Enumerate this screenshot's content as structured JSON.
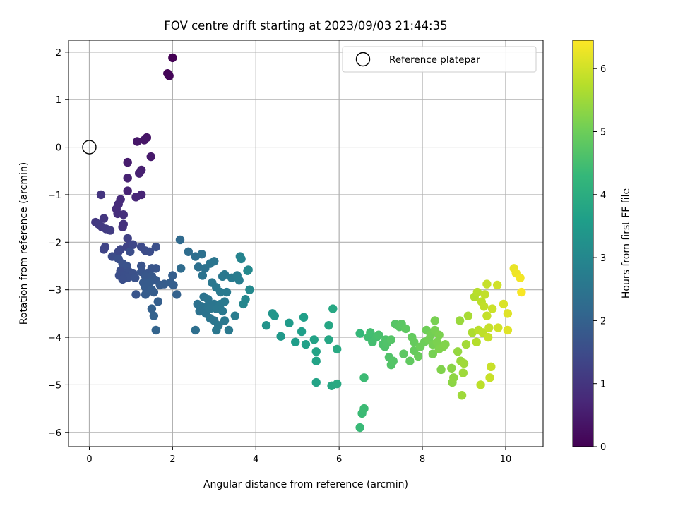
{
  "chart_data": {
    "type": "scatter",
    "title": "FOV centre drift starting at 2023/09/03 21:44:35",
    "xlabel": "Angular distance from reference (arcmin)",
    "ylabel": "Rotation from reference (arcmin)",
    "xlim": [
      -0.5,
      10.9
    ],
    "ylim": [
      -6.3,
      2.25
    ],
    "xticks": [
      0,
      2,
      4,
      6,
      8,
      10
    ],
    "yticks": [
      -6,
      -5,
      -4,
      -3,
      -2,
      -1,
      0,
      1,
      2
    ],
    "grid": true,
    "legend": {
      "placement": "top-right",
      "entries": [
        "Reference platepar"
      ]
    },
    "reference_point": {
      "label": "Reference platepar",
      "x": 0,
      "y": 0,
      "marker": "open-circle"
    },
    "colorbar": {
      "label": "Hours from first FF file",
      "colormap": "viridis",
      "range": [
        0,
        6.45
      ],
      "ticks": [
        0,
        1,
        2,
        3,
        4,
        5,
        6
      ]
    },
    "colormap_stops": [
      "#440154",
      "#482878",
      "#3e4989",
      "#31688e",
      "#26828e",
      "#1f9e89",
      "#35b779",
      "#6ece58",
      "#b5de2b",
      "#fde725"
    ],
    "marker_color": "#000000",
    "points": [
      {
        "x": 2.0,
        "y": 1.88,
        "c": 0.0
      },
      {
        "x": 1.88,
        "y": 1.55,
        "c": 0.05
      },
      {
        "x": 1.92,
        "y": 1.5,
        "c": 0.08
      },
      {
        "x": 1.38,
        "y": 0.2,
        "c": 0.35
      },
      {
        "x": 1.32,
        "y": 0.15,
        "c": 0.38
      },
      {
        "x": 1.15,
        "y": 0.12,
        "c": 0.4
      },
      {
        "x": 1.48,
        "y": -0.2,
        "c": 0.45
      },
      {
        "x": 0.92,
        "y": -0.32,
        "c": 0.5
      },
      {
        "x": 1.25,
        "y": -0.48,
        "c": 0.55
      },
      {
        "x": 1.2,
        "y": -0.55,
        "c": 0.58
      },
      {
        "x": 0.92,
        "y": -0.65,
        "c": 0.6
      },
      {
        "x": 0.92,
        "y": -0.92,
        "c": 0.65
      },
      {
        "x": 1.25,
        "y": -1.0,
        "c": 0.67
      },
      {
        "x": 1.12,
        "y": -1.05,
        "c": 0.7
      },
      {
        "x": 0.28,
        "y": -1.0,
        "c": 1.0
      },
      {
        "x": 0.75,
        "y": -1.1,
        "c": 0.78
      },
      {
        "x": 0.7,
        "y": -1.2,
        "c": 0.8
      },
      {
        "x": 0.65,
        "y": -1.3,
        "c": 0.82
      },
      {
        "x": 0.68,
        "y": -1.4,
        "c": 0.85
      },
      {
        "x": 0.82,
        "y": -1.42,
        "c": 0.88
      },
      {
        "x": 0.35,
        "y": -1.5,
        "c": 1.02
      },
      {
        "x": 0.15,
        "y": -1.58,
        "c": 1.05
      },
      {
        "x": 0.22,
        "y": -1.62,
        "c": 1.08
      },
      {
        "x": 0.3,
        "y": -1.68,
        "c": 1.1
      },
      {
        "x": 0.4,
        "y": -1.72,
        "c": 1.12
      },
      {
        "x": 0.5,
        "y": -1.75,
        "c": 1.15
      },
      {
        "x": 0.82,
        "y": -1.62,
        "c": 0.9
      },
      {
        "x": 0.8,
        "y": -1.68,
        "c": 0.92
      },
      {
        "x": 0.92,
        "y": -1.92,
        "c": 1.25
      },
      {
        "x": 0.38,
        "y": -2.1,
        "c": 1.3
      },
      {
        "x": 0.35,
        "y": -2.15,
        "c": 1.32
      },
      {
        "x": 0.75,
        "y": -2.15,
        "c": 1.35
      },
      {
        "x": 0.9,
        "y": -2.1,
        "c": 1.3
      },
      {
        "x": 1.05,
        "y": -2.05,
        "c": 1.38
      },
      {
        "x": 0.7,
        "y": -2.2,
        "c": 1.4
      },
      {
        "x": 1.25,
        "y": -2.1,
        "c": 1.45
      },
      {
        "x": 1.35,
        "y": -2.18,
        "c": 1.5
      },
      {
        "x": 1.45,
        "y": -2.2,
        "c": 1.52
      },
      {
        "x": 0.98,
        "y": -2.2,
        "c": 1.55
      },
      {
        "x": 0.55,
        "y": -2.3,
        "c": 1.5
      },
      {
        "x": 0.7,
        "y": -2.35,
        "c": 1.58
      },
      {
        "x": 1.6,
        "y": -2.1,
        "c": 1.6
      },
      {
        "x": 0.8,
        "y": -2.45,
        "c": 1.62
      },
      {
        "x": 0.9,
        "y": -2.5,
        "c": 1.65
      },
      {
        "x": 1.25,
        "y": -2.5,
        "c": 1.68
      },
      {
        "x": 1.5,
        "y": -2.55,
        "c": 1.7
      },
      {
        "x": 1.6,
        "y": -2.55,
        "c": 1.72
      },
      {
        "x": 0.75,
        "y": -2.6,
        "c": 1.55
      },
      {
        "x": 0.95,
        "y": -2.62,
        "c": 1.6
      },
      {
        "x": 1.05,
        "y": -2.65,
        "c": 1.62
      },
      {
        "x": 1.25,
        "y": -2.62,
        "c": 1.7
      },
      {
        "x": 1.4,
        "y": -2.65,
        "c": 1.72
      },
      {
        "x": 0.72,
        "y": -2.7,
        "c": 1.55
      },
      {
        "x": 0.85,
        "y": -2.7,
        "c": 1.58
      },
      {
        "x": 0.92,
        "y": -2.75,
        "c": 1.6
      },
      {
        "x": 0.8,
        "y": -2.78,
        "c": 1.58
      },
      {
        "x": 1.1,
        "y": -2.75,
        "c": 1.65
      },
      {
        "x": 1.35,
        "y": -2.72,
        "c": 1.75
      },
      {
        "x": 1.5,
        "y": -2.72,
        "c": 1.78
      },
      {
        "x": 1.6,
        "y": -2.8,
        "c": 1.8
      },
      {
        "x": 1.3,
        "y": -2.85,
        "c": 1.82
      },
      {
        "x": 1.45,
        "y": -2.85,
        "c": 1.85
      },
      {
        "x": 1.7,
        "y": -2.9,
        "c": 1.88
      },
      {
        "x": 1.8,
        "y": -2.88,
        "c": 1.9
      },
      {
        "x": 1.95,
        "y": -2.85,
        "c": 1.92
      },
      {
        "x": 2.0,
        "y": -2.7,
        "c": 1.95
      },
      {
        "x": 2.02,
        "y": -2.9,
        "c": 1.95
      },
      {
        "x": 1.35,
        "y": -2.95,
        "c": 1.85
      },
      {
        "x": 1.4,
        "y": -3.05,
        "c": 1.85
      },
      {
        "x": 1.5,
        "y": -3.0,
        "c": 1.9
      },
      {
        "x": 1.55,
        "y": -3.05,
        "c": 1.9
      },
      {
        "x": 1.35,
        "y": -3.1,
        "c": 1.88
      },
      {
        "x": 1.12,
        "y": -3.1,
        "c": 1.7
      },
      {
        "x": 2.1,
        "y": -3.1,
        "c": 2.0
      },
      {
        "x": 1.65,
        "y": -3.25,
        "c": 1.95
      },
      {
        "x": 1.5,
        "y": -3.4,
        "c": 1.98
      },
      {
        "x": 1.55,
        "y": -3.55,
        "c": 2.0
      },
      {
        "x": 1.6,
        "y": -3.85,
        "c": 2.05
      },
      {
        "x": 2.18,
        "y": -1.95,
        "c": 2.2
      },
      {
        "x": 2.38,
        "y": -2.2,
        "c": 2.3
      },
      {
        "x": 2.2,
        "y": -2.55,
        "c": 2.25
      },
      {
        "x": 2.55,
        "y": -2.3,
        "c": 2.35
      },
      {
        "x": 2.7,
        "y": -2.25,
        "c": 2.4
      },
      {
        "x": 2.62,
        "y": -2.52,
        "c": 2.38
      },
      {
        "x": 2.78,
        "y": -2.55,
        "c": 2.42
      },
      {
        "x": 2.72,
        "y": -2.7,
        "c": 2.45
      },
      {
        "x": 2.9,
        "y": -2.45,
        "c": 2.5
      },
      {
        "x": 3.0,
        "y": -2.4,
        "c": 2.52
      },
      {
        "x": 3.25,
        "y": -2.68,
        "c": 2.6
      },
      {
        "x": 3.2,
        "y": -2.72,
        "c": 2.6
      },
      {
        "x": 3.42,
        "y": -2.75,
        "c": 2.65
      },
      {
        "x": 3.55,
        "y": -2.7,
        "c": 2.7
      },
      {
        "x": 3.6,
        "y": -2.8,
        "c": 2.72
      },
      {
        "x": 3.62,
        "y": -2.3,
        "c": 2.9
      },
      {
        "x": 3.65,
        "y": -2.35,
        "c": 2.92
      },
      {
        "x": 3.8,
        "y": -2.6,
        "c": 3.0
      },
      {
        "x": 3.82,
        "y": -2.58,
        "c": 3.05
      },
      {
        "x": 2.95,
        "y": -2.85,
        "c": 2.55
      },
      {
        "x": 3.05,
        "y": -2.95,
        "c": 2.58
      },
      {
        "x": 3.15,
        "y": -3.05,
        "c": 2.62
      },
      {
        "x": 3.3,
        "y": -3.05,
        "c": 2.65
      },
      {
        "x": 3.85,
        "y": -3.0,
        "c": 3.05
      },
      {
        "x": 3.75,
        "y": -3.2,
        "c": 3.0
      },
      {
        "x": 3.7,
        "y": -3.3,
        "c": 2.98
      },
      {
        "x": 2.75,
        "y": -3.15,
        "c": 2.45
      },
      {
        "x": 2.85,
        "y": -3.2,
        "c": 2.48
      },
      {
        "x": 2.6,
        "y": -3.3,
        "c": 2.4
      },
      {
        "x": 2.7,
        "y": -3.35,
        "c": 2.42
      },
      {
        "x": 2.85,
        "y": -3.35,
        "c": 2.48
      },
      {
        "x": 3.0,
        "y": -3.3,
        "c": 2.52
      },
      {
        "x": 3.15,
        "y": -3.3,
        "c": 2.58
      },
      {
        "x": 3.25,
        "y": -3.25,
        "c": 2.62
      },
      {
        "x": 2.65,
        "y": -3.45,
        "c": 2.42
      },
      {
        "x": 2.8,
        "y": -3.5,
        "c": 2.45
      },
      {
        "x": 2.9,
        "y": -3.4,
        "c": 2.5
      },
      {
        "x": 3.05,
        "y": -3.4,
        "c": 2.55
      },
      {
        "x": 3.2,
        "y": -3.45,
        "c": 2.6
      },
      {
        "x": 2.9,
        "y": -3.6,
        "c": 2.5
      },
      {
        "x": 3.0,
        "y": -3.65,
        "c": 2.52
      },
      {
        "x": 3.1,
        "y": -3.75,
        "c": 2.55
      },
      {
        "x": 3.05,
        "y": -3.85,
        "c": 2.55
      },
      {
        "x": 3.25,
        "y": -3.65,
        "c": 2.6
      },
      {
        "x": 3.35,
        "y": -3.85,
        "c": 2.62
      },
      {
        "x": 3.5,
        "y": -3.55,
        "c": 2.7
      },
      {
        "x": 2.55,
        "y": -3.85,
        "c": 2.35
      },
      {
        "x": 4.25,
        "y": -3.75,
        "c": 3.3
      },
      {
        "x": 4.4,
        "y": -3.5,
        "c": 3.35
      },
      {
        "x": 4.45,
        "y": -3.55,
        "c": 3.38
      },
      {
        "x": 4.6,
        "y": -3.98,
        "c": 3.45
      },
      {
        "x": 4.8,
        "y": -3.7,
        "c": 3.5
      },
      {
        "x": 4.95,
        "y": -4.1,
        "c": 3.55
      },
      {
        "x": 5.1,
        "y": -3.88,
        "c": 3.6
      },
      {
        "x": 5.15,
        "y": -3.58,
        "c": 3.62
      },
      {
        "x": 5.2,
        "y": -4.15,
        "c": 3.65
      },
      {
        "x": 5.4,
        "y": -4.05,
        "c": 3.7
      },
      {
        "x": 5.45,
        "y": -4.3,
        "c": 3.72
      },
      {
        "x": 5.45,
        "y": -4.5,
        "c": 3.72
      },
      {
        "x": 5.45,
        "y": -4.95,
        "c": 3.72
      },
      {
        "x": 5.75,
        "y": -4.05,
        "c": 3.8
      },
      {
        "x": 5.75,
        "y": -3.75,
        "c": 3.8
      },
      {
        "x": 5.85,
        "y": -3.4,
        "c": 3.85
      },
      {
        "x": 5.82,
        "y": -5.02,
        "c": 3.85
      },
      {
        "x": 5.95,
        "y": -4.98,
        "c": 3.9
      },
      {
        "x": 5.95,
        "y": -4.25,
        "c": 3.9
      },
      {
        "x": 6.5,
        "y": -3.92,
        "c": 4.3
      },
      {
        "x": 6.5,
        "y": -5.9,
        "c": 4.35
      },
      {
        "x": 6.55,
        "y": -5.6,
        "c": 4.38
      },
      {
        "x": 6.6,
        "y": -5.5,
        "c": 4.4
      },
      {
        "x": 6.6,
        "y": -4.85,
        "c": 4.4
      },
      {
        "x": 6.7,
        "y": -4.0,
        "c": 4.45
      },
      {
        "x": 6.75,
        "y": -3.9,
        "c": 4.48
      },
      {
        "x": 6.8,
        "y": -4.1,
        "c": 4.5
      },
      {
        "x": 6.9,
        "y": -4.0,
        "c": 4.52
      },
      {
        "x": 6.95,
        "y": -3.95,
        "c": 4.55
      },
      {
        "x": 7.05,
        "y": -4.15,
        "c": 4.6
      },
      {
        "x": 7.1,
        "y": -4.2,
        "c": 4.62
      },
      {
        "x": 7.12,
        "y": -4.05,
        "c": 4.62
      },
      {
        "x": 7.15,
        "y": -4.12,
        "c": 4.65
      },
      {
        "x": 7.2,
        "y": -4.42,
        "c": 4.65
      },
      {
        "x": 7.25,
        "y": -4.58,
        "c": 4.68
      },
      {
        "x": 7.25,
        "y": -4.05,
        "c": 4.7
      },
      {
        "x": 7.3,
        "y": -4.5,
        "c": 4.7
      },
      {
        "x": 7.35,
        "y": -3.72,
        "c": 4.72
      },
      {
        "x": 7.45,
        "y": -3.78,
        "c": 4.75
      },
      {
        "x": 7.5,
        "y": -3.72,
        "c": 4.78
      },
      {
        "x": 7.55,
        "y": -4.35,
        "c": 4.8
      },
      {
        "x": 7.6,
        "y": -3.82,
        "c": 4.82
      },
      {
        "x": 7.7,
        "y": -4.5,
        "c": 4.85
      },
      {
        "x": 7.75,
        "y": -4.0,
        "c": 4.88
      },
      {
        "x": 7.8,
        "y": -4.1,
        "c": 4.9
      },
      {
        "x": 7.8,
        "y": -4.28,
        "c": 4.9
      },
      {
        "x": 7.9,
        "y": -4.4,
        "c": 4.95
      },
      {
        "x": 7.95,
        "y": -4.2,
        "c": 4.98
      },
      {
        "x": 8.05,
        "y": -4.1,
        "c": 5.0
      },
      {
        "x": 8.1,
        "y": -3.85,
        "c": 5.02
      },
      {
        "x": 8.15,
        "y": -4.05,
        "c": 5.05
      },
      {
        "x": 8.2,
        "y": -3.95,
        "c": 5.08
      },
      {
        "x": 8.25,
        "y": -4.15,
        "c": 5.1
      },
      {
        "x": 8.25,
        "y": -4.35,
        "c": 5.1
      },
      {
        "x": 8.3,
        "y": -3.65,
        "c": 5.12
      },
      {
        "x": 8.3,
        "y": -3.85,
        "c": 5.12
      },
      {
        "x": 8.35,
        "y": -4.1,
        "c": 5.15
      },
      {
        "x": 8.4,
        "y": -3.95,
        "c": 5.15
      },
      {
        "x": 8.4,
        "y": -4.25,
        "c": 5.18
      },
      {
        "x": 8.45,
        "y": -4.68,
        "c": 5.2
      },
      {
        "x": 8.5,
        "y": -4.2,
        "c": 5.2
      },
      {
        "x": 8.55,
        "y": -4.15,
        "c": 5.22
      },
      {
        "x": 8.7,
        "y": -4.65,
        "c": 5.3
      },
      {
        "x": 8.72,
        "y": -4.95,
        "c": 5.32
      },
      {
        "x": 8.75,
        "y": -4.85,
        "c": 5.35
      },
      {
        "x": 8.85,
        "y": -4.3,
        "c": 5.4
      },
      {
        "x": 8.9,
        "y": -3.65,
        "c": 5.45
      },
      {
        "x": 8.92,
        "y": -4.5,
        "c": 5.45
      },
      {
        "x": 8.95,
        "y": -5.22,
        "c": 5.5
      },
      {
        "x": 8.98,
        "y": -4.75,
        "c": 5.5
      },
      {
        "x": 9.0,
        "y": -4.55,
        "c": 5.52
      },
      {
        "x": 9.05,
        "y": -4.15,
        "c": 5.55
      },
      {
        "x": 9.1,
        "y": -3.55,
        "c": 5.6
      },
      {
        "x": 9.2,
        "y": -3.9,
        "c": 5.65
      },
      {
        "x": 9.25,
        "y": -3.15,
        "c": 5.7
      },
      {
        "x": 9.3,
        "y": -4.1,
        "c": 5.72
      },
      {
        "x": 9.32,
        "y": -3.05,
        "c": 5.75
      },
      {
        "x": 9.35,
        "y": -3.85,
        "c": 5.78
      },
      {
        "x": 9.4,
        "y": -5.0,
        "c": 5.8
      },
      {
        "x": 9.42,
        "y": -3.25,
        "c": 5.8
      },
      {
        "x": 9.45,
        "y": -3.9,
        "c": 5.82
      },
      {
        "x": 9.48,
        "y": -3.35,
        "c": 5.85
      },
      {
        "x": 9.5,
        "y": -3.1,
        "c": 5.85
      },
      {
        "x": 9.55,
        "y": -3.55,
        "c": 5.88
      },
      {
        "x": 9.55,
        "y": -2.88,
        "c": 5.9
      },
      {
        "x": 9.58,
        "y": -4.0,
        "c": 5.9
      },
      {
        "x": 9.6,
        "y": -3.8,
        "c": 5.9
      },
      {
        "x": 9.62,
        "y": -4.85,
        "c": 5.92
      },
      {
        "x": 9.65,
        "y": -4.62,
        "c": 5.92
      },
      {
        "x": 9.68,
        "y": -3.4,
        "c": 5.95
      },
      {
        "x": 9.8,
        "y": -2.9,
        "c": 6.0
      },
      {
        "x": 9.82,
        "y": -3.8,
        "c": 6.0
      },
      {
        "x": 9.95,
        "y": -3.3,
        "c": 6.1
      },
      {
        "x": 10.05,
        "y": -3.85,
        "c": 6.15
      },
      {
        "x": 10.05,
        "y": -3.5,
        "c": 6.15
      },
      {
        "x": 10.2,
        "y": -2.55,
        "c": 6.25
      },
      {
        "x": 10.25,
        "y": -2.65,
        "c": 6.3
      },
      {
        "x": 10.35,
        "y": -2.75,
        "c": 6.35
      },
      {
        "x": 10.38,
        "y": -3.05,
        "c": 6.4
      }
    ]
  }
}
